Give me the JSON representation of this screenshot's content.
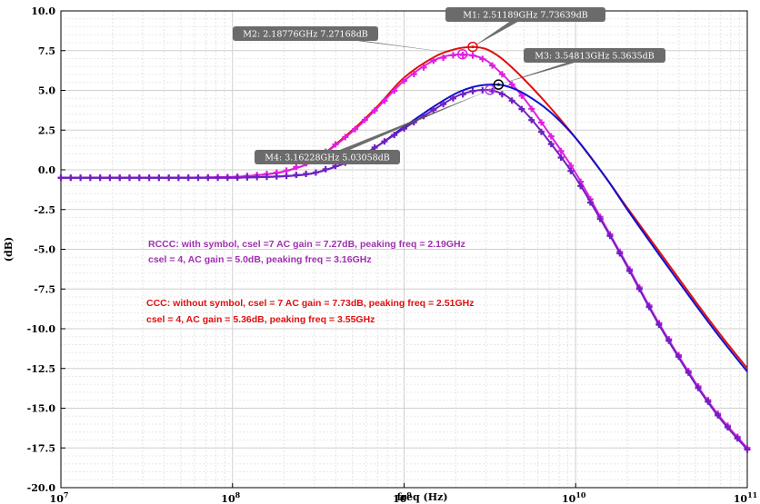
{
  "chart_data": {
    "type": "line",
    "xlabel": "freq (Hz)",
    "ylabel": "(dB)",
    "xscale": "log",
    "xlim": [
      10000000,
      100000000000
    ],
    "ylim": [
      -20,
      10
    ],
    "grid": true,
    "x_ticks": [
      {
        "value": 10000000,
        "base": "10",
        "exp": "7"
      },
      {
        "value": 100000000,
        "base": "10",
        "exp": "8"
      },
      {
        "value": 1000000000,
        "base": "10",
        "exp": "9"
      },
      {
        "value": 10000000000,
        "base": "10",
        "exp": "10"
      },
      {
        "value": 100000000000,
        "base": "10",
        "exp": "11"
      }
    ],
    "y_ticks": [
      "10.0",
      "7.5",
      "5.0",
      "2.5",
      "0.0",
      "-2.5",
      "-5.0",
      "-7.5",
      "-10.0",
      "-12.5",
      "-15.0",
      "-17.5",
      "-20.0"
    ],
    "x": [
      10000000,
      20000000,
      50000000,
      100000000,
      150000000,
      200000000,
      300000000,
      500000000,
      700000000,
      1000000000,
      1500000000,
      2000000000,
      2500000000,
      3000000000,
      3500000000,
      4000000000,
      5000000000,
      7000000000,
      10000000000,
      15000000000,
      20000000000,
      30000000000,
      50000000000,
      70000000000,
      100000000000
    ],
    "series": [
      {
        "color": "#e01010",
        "values": [
          -0.5,
          -0.5,
          -0.5,
          -0.45,
          -0.3,
          -0.1,
          0.6,
          2.5,
          4.0,
          5.8,
          7.1,
          7.6,
          7.73,
          7.6,
          7.2,
          6.7,
          5.7,
          4.0,
          2.0,
          -0.5,
          -2.4,
          -5.0,
          -8.3,
          -10.4,
          -12.5
        ]
      },
      {
        "color": "#e020e0",
        "symbol": true,
        "values": [
          -0.5,
          -0.5,
          -0.5,
          -0.45,
          -0.3,
          -0.1,
          0.6,
          2.4,
          3.9,
          5.6,
          6.9,
          7.25,
          7.2,
          6.9,
          6.3,
          5.7,
          4.5,
          2.3,
          -0.2,
          -3.6,
          -6.0,
          -9.5,
          -13.4,
          -15.6,
          -17.5
        ]
      },
      {
        "color": "#1010d0",
        "values": [
          -0.5,
          -0.5,
          -0.5,
          -0.5,
          -0.45,
          -0.4,
          -0.2,
          0.6,
          1.5,
          2.7,
          4.0,
          4.8,
          5.2,
          5.35,
          5.36,
          5.25,
          4.8,
          3.7,
          2.0,
          -0.5,
          -2.5,
          -5.2,
          -8.5,
          -10.6,
          -12.7
        ]
      },
      {
        "color": "#7020c0",
        "symbol": true,
        "values": [
          -0.5,
          -0.5,
          -0.5,
          -0.5,
          -0.45,
          -0.4,
          -0.2,
          0.6,
          1.5,
          2.6,
          3.8,
          4.6,
          4.95,
          5.03,
          4.9,
          4.6,
          3.7,
          1.8,
          -0.5,
          -3.7,
          -6.1,
          -9.6,
          -13.5,
          -15.7,
          -17.6
        ]
      }
    ],
    "markers": [
      {
        "label": "M1: 2.51189GHz 7.73639dB",
        "x": 2511890000,
        "y": 7.73639,
        "color": "#e01010"
      },
      {
        "label": "M2: 2.18776GHz 7.27168dB",
        "x": 2187760000,
        "y": 7.27168,
        "color": "#e020e0"
      },
      {
        "label": "M3: 3.54813GHz 5.3635dB",
        "x": 3548130000,
        "y": 5.3635,
        "color": "#000000"
      },
      {
        "label": "M4: 3.16228GHz 5.03058dB",
        "x": 3162280000,
        "y": 5.03058,
        "color": "#b040e0"
      }
    ],
    "annotations": [
      {
        "text": "RCCC:  with symbol,   csel =7  AC gain = 7.27dB,  peaking freq = 2.19GHz",
        "color": "#a030b0"
      },
      {
        "text": "csel = 4, AC gain = 5.0dB, peaking freq = 3.16GHz",
        "color": "#a030b0"
      },
      {
        "text": "CCC: without symbol, csel = 7 AC gain = 7.73dB, peaking freq = 2.51GHz",
        "color": "#e01010"
      },
      {
        "text": "csel = 4, AC gain = 5.36dB,  peaking freq = 3.55GHz",
        "color": "#e01010"
      }
    ]
  }
}
